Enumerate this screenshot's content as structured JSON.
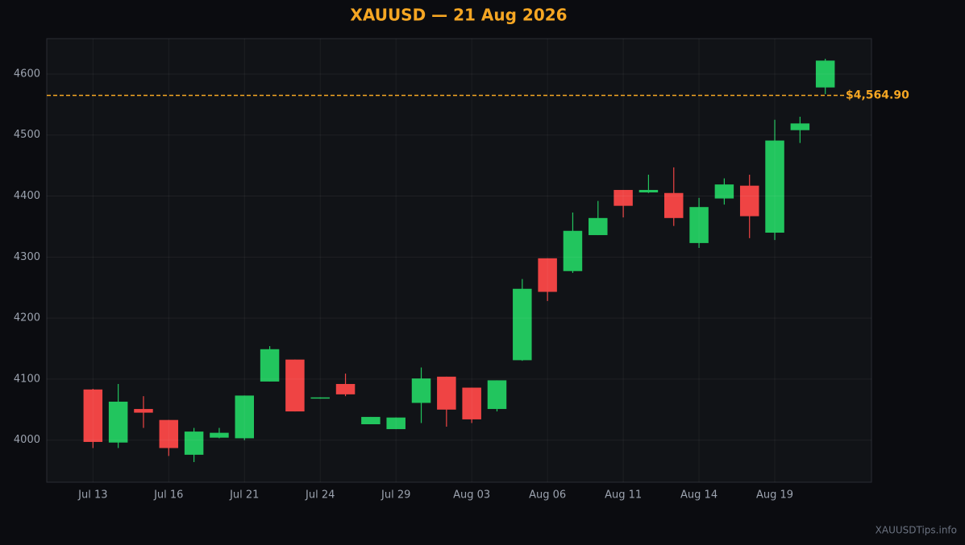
{
  "chart_data": {
    "type": "candlestick",
    "title": "XAUUSD — 21 Aug 2026",
    "categories": [
      "Jul 13",
      null,
      null,
      "Jul 16",
      null,
      null,
      "Jul 21",
      null,
      null,
      "Jul 24",
      null,
      null,
      "Jul 29",
      null,
      null,
      "Aug 03",
      null,
      null,
      "Aug 06",
      null,
      null,
      "Aug 11",
      null,
      null,
      "Aug 14",
      null,
      null,
      "Aug 19",
      null,
      null
    ],
    "open": [
      4083,
      3996,
      4051,
      4033,
      3976,
      4004,
      4003,
      4096,
      4132,
      4068,
      4092,
      4026,
      4018,
      4061,
      4104,
      4086,
      4051,
      4131,
      4298,
      4277,
      4336,
      4410,
      4406,
      4405,
      4323,
      4396,
      4417,
      4340,
      4508,
      4578
    ],
    "high": [
      4084,
      4092,
      4072,
      4033,
      4020,
      4020,
      4073,
      4154,
      4132,
      4070,
      4109,
      4038,
      4037,
      4119,
      4104,
      4086,
      4098,
      4264,
      4298,
      4373,
      4392,
      4410,
      4435,
      4447,
      4397,
      4429,
      4435,
      4525,
      4530,
      4625
    ],
    "low": [
      3987,
      3987,
      4020,
      3974,
      3964,
      4003,
      4000,
      4096,
      4047,
      4068,
      4072,
      4026,
      4018,
      4028,
      4022,
      4028,
      4047,
      4130,
      4228,
      4274,
      4336,
      4365,
      4405,
      4351,
      4315,
      4386,
      4331,
      4328,
      4487,
      4567
    ],
    "close": [
      3997,
      4063,
      4045,
      3987,
      4014,
      4012,
      4073,
      4149,
      4047,
      4070,
      4075,
      4038,
      4037,
      4101,
      4050,
      4034,
      4098,
      4248,
      4243,
      4343,
      4364,
      4384,
      4410,
      4364,
      4382,
      4419,
      4367,
      4491,
      4519,
      4622
    ],
    "up_color": "#22c55e",
    "down_color": "#ef4444",
    "ylim": [
      3931,
      4658
    ],
    "yticks": [
      4000,
      4100,
      4200,
      4300,
      4400,
      4500,
      4600
    ],
    "grid": true,
    "price_line": {
      "value": 4564.9,
      "label": "$4,564.90",
      "color": "#f5a623"
    },
    "watermark": "XAUUSDTips.info"
  }
}
